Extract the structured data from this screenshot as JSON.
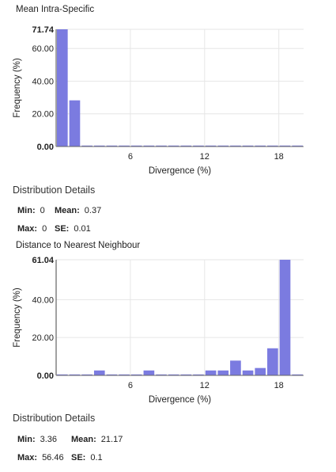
{
  "chart_data": [
    {
      "type": "bar",
      "title": "Mean Intra-Specific",
      "xlabel": "Divergence (%)",
      "ylabel": "Frequency (%)",
      "xlim": [
        0,
        20
      ],
      "ylim": [
        0,
        71.74
      ],
      "bin_width": 1,
      "x_ticks": [
        6,
        12,
        18
      ],
      "x_tick_labels": [
        "6",
        "12",
        "18"
      ],
      "y_ticks": [
        0,
        20,
        40,
        60,
        71.74
      ],
      "y_tick_labels": [
        "0.00",
        "20.00",
        "40.00",
        "60.00",
        "71.74"
      ],
      "values": [
        71.74,
        28.26,
        0,
        0,
        0,
        0,
        0,
        0,
        0,
        0,
        0,
        0,
        0,
        0,
        0,
        0,
        0,
        0,
        0,
        0
      ],
      "bar_color": "#7b7be0",
      "grid": true
    },
    {
      "type": "bar",
      "title": "Distance to Nearest Neighbour",
      "xlabel": "Divergence (%)",
      "ylabel": "Frequency (%)",
      "xlim": [
        0,
        20
      ],
      "ylim": [
        0,
        61.04
      ],
      "bin_width": 1,
      "x_ticks": [
        6,
        12,
        18
      ],
      "x_tick_labels": [
        "6",
        "12",
        "18"
      ],
      "y_ticks": [
        0,
        20,
        40,
        61.04
      ],
      "y_tick_labels": [
        "0.00",
        "20.00",
        "40.00",
        "61.04"
      ],
      "values": [
        0,
        0,
        0,
        2.6,
        0,
        0,
        0,
        2.6,
        0,
        0,
        0,
        0,
        2.6,
        2.6,
        7.8,
        2.6,
        3.9,
        14.3,
        61.04,
        0
      ],
      "bar_color": "#7b7be0",
      "grid": true
    }
  ],
  "details": [
    {
      "heading": "Distribution Details",
      "min_label": "Min:",
      "min": "0",
      "mean_label": "Mean:",
      "mean": "0.37",
      "max_label": "Max:",
      "max": "0",
      "se_label": "SE:",
      "se": "0.01"
    },
    {
      "heading": "Distribution Details",
      "min_label": "Min:",
      "min": "3.36",
      "mean_label": "Mean:",
      "mean": "21.17",
      "max_label": "Max:",
      "max": "56.46",
      "se_label": "SE:",
      "se": "0.1"
    }
  ]
}
